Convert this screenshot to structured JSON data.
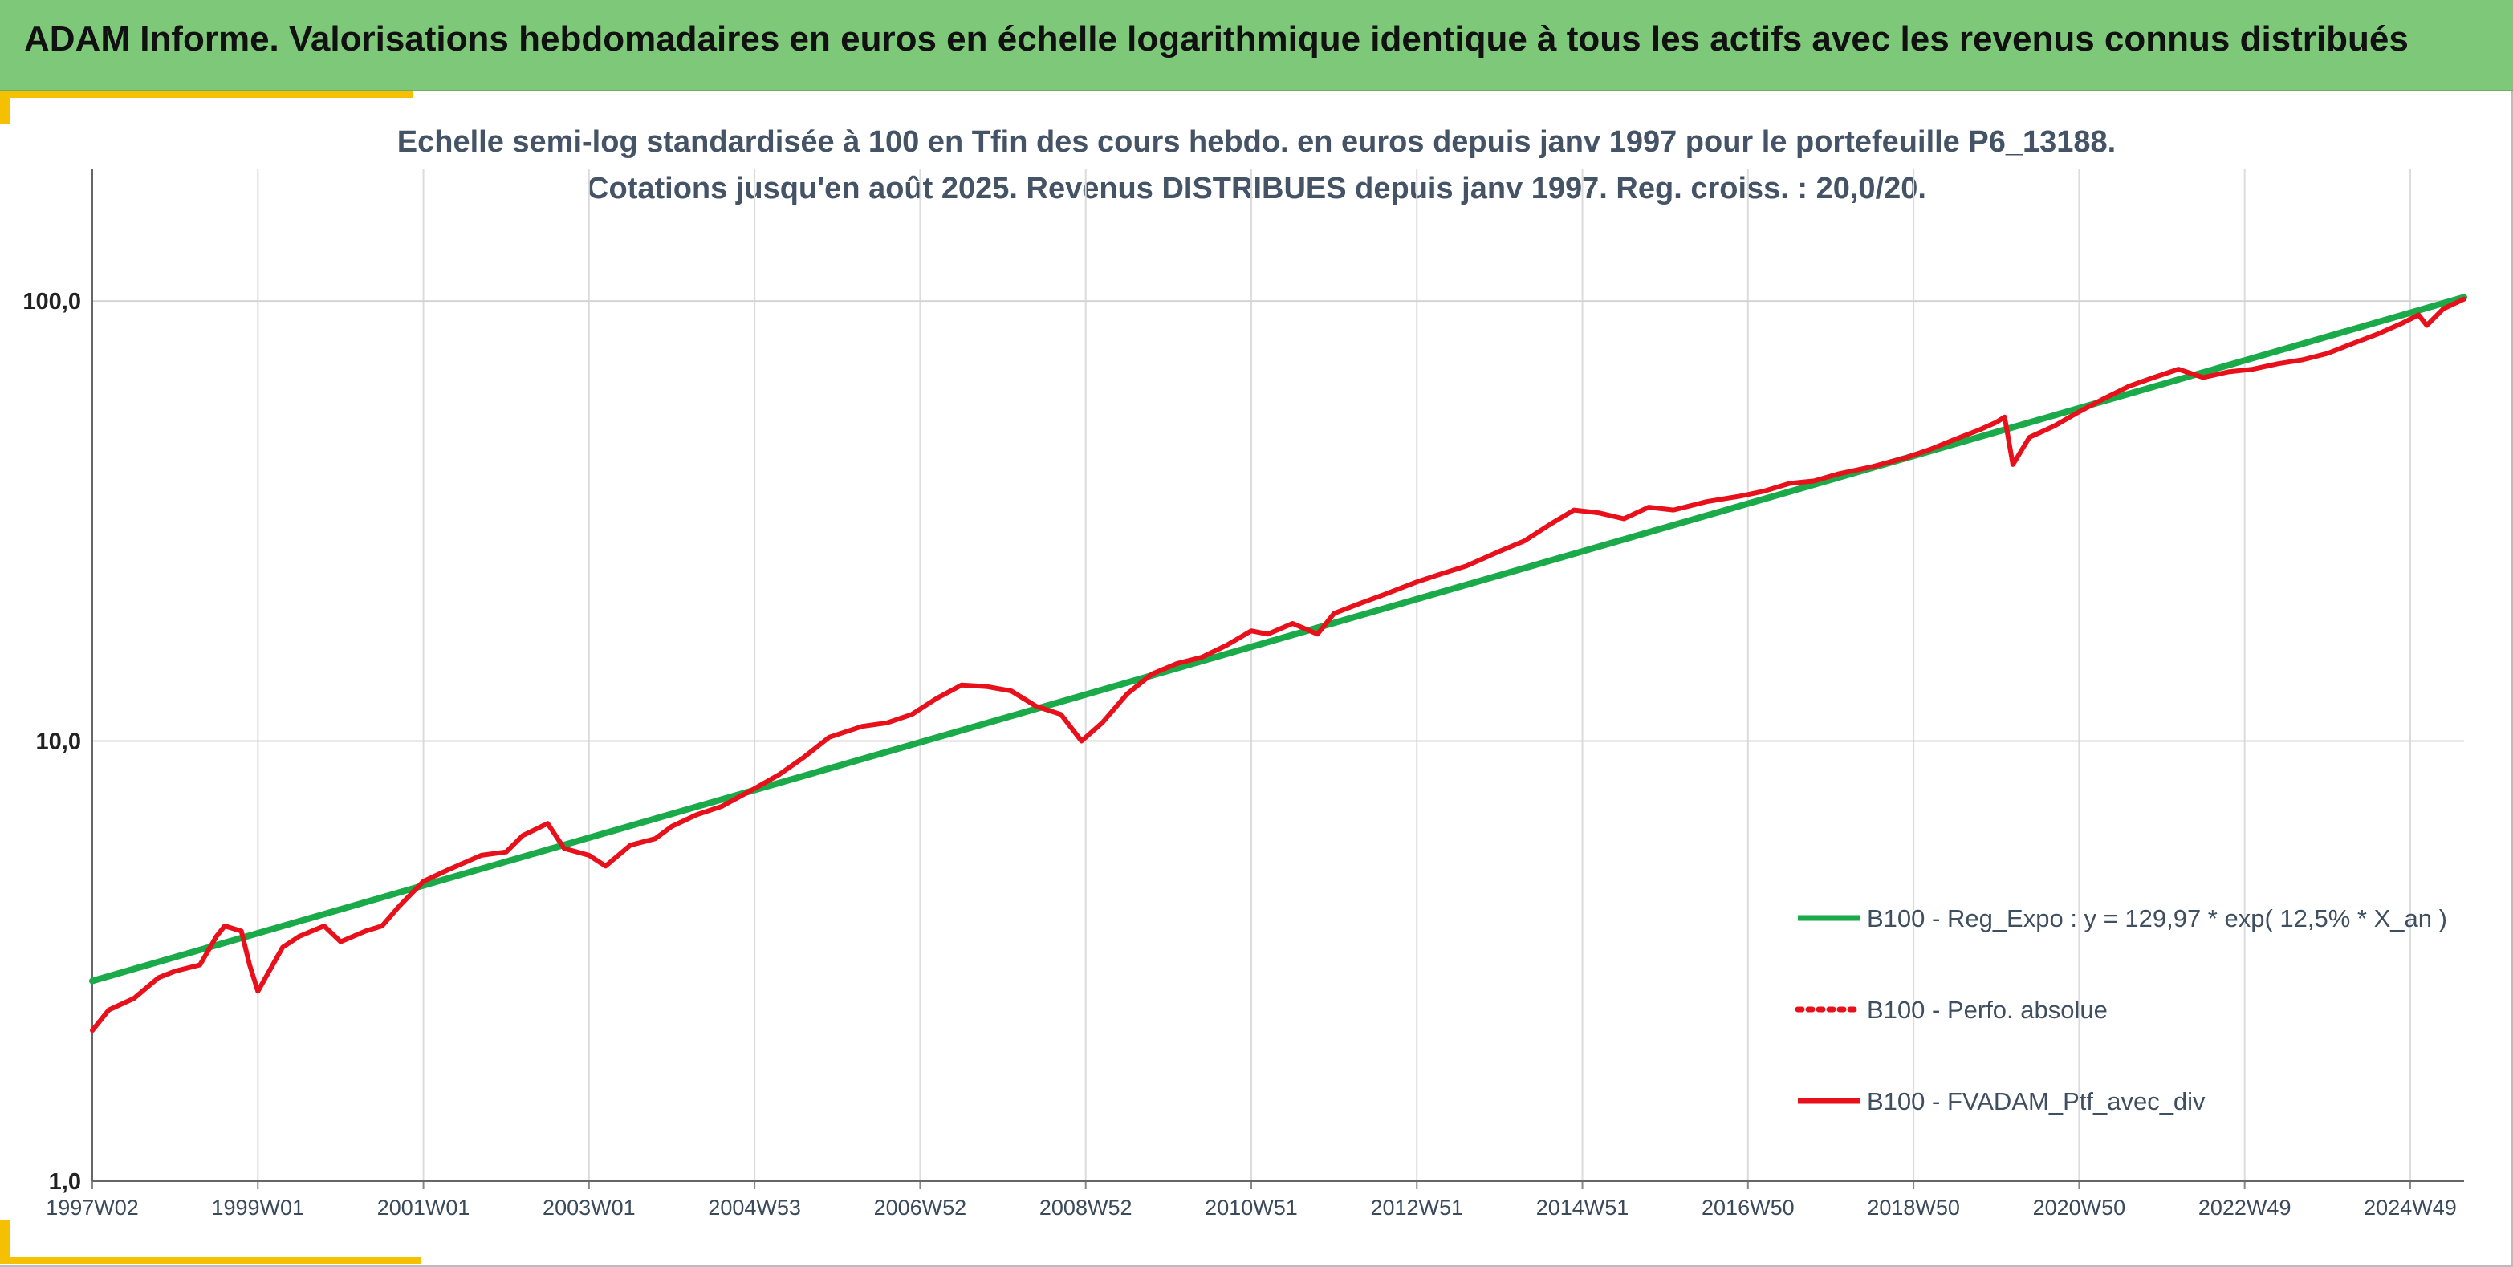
{
  "header": {
    "title": "ADAM Informe. Valorisations hebdomadaires en euros en échelle logarithmique identique à tous les actifs avec les revenus connus distribués"
  },
  "chart_data": {
    "type": "line",
    "title_lines": [
      "Echelle semi-log standardisée à 100 en Tfin des cours hebdo. en euros depuis janv 1997 pour le portefeuille P6_13188.",
      "Cotations jusqu'en août 2025. Revenus DISTRIBUES depuis janv 1997. Reg. croiss. : 20,0/20."
    ],
    "y_scale": "log",
    "ylim": [
      1,
      200
    ],
    "y_ticks": [
      {
        "value": 1,
        "label": "1,0"
      },
      {
        "value": 10,
        "label": "10,0"
      },
      {
        "value": 100,
        "label": "100,0"
      }
    ],
    "xlim": [
      1997.0,
      2025.65
    ],
    "x_ticks": [
      {
        "value": 1997.0,
        "label": "1997W02"
      },
      {
        "value": 1999.0,
        "label": "1999W01"
      },
      {
        "value": 2001.0,
        "label": "2001W01"
      },
      {
        "value": 2003.0,
        "label": "2003W01"
      },
      {
        "value": 2005.0,
        "label": "2004W53"
      },
      {
        "value": 2007.0,
        "label": "2006W52"
      },
      {
        "value": 2009.0,
        "label": "2008W52"
      },
      {
        "value": 2011.0,
        "label": "2010W51"
      },
      {
        "value": 2013.0,
        "label": "2012W51"
      },
      {
        "value": 2015.0,
        "label": "2014W51"
      },
      {
        "value": 2017.0,
        "label": "2016W50"
      },
      {
        "value": 2019.0,
        "label": "2018W50"
      },
      {
        "value": 2021.0,
        "label": "2020W50"
      },
      {
        "value": 2023.0,
        "label": "2022W49"
      },
      {
        "value": 2025.0,
        "label": "2024W49"
      }
    ],
    "grid": "vertical",
    "legend_position": "right",
    "series": [
      {
        "name": "B100 - Reg_Expo : y = 129,97 * exp( 12,5% *  X_an )",
        "color": "#1aaa4a",
        "style": "solid",
        "x": [
          1997.0,
          2025.65
        ],
        "y": [
          2.85,
          102.0
        ]
      },
      {
        "name": "B100 - Perfo. absolue",
        "color": "#e8101a",
        "style": "dotted",
        "x": [],
        "y": []
      },
      {
        "name": "B100 - FVADAM_Ptf_avec_div",
        "color": "#e8101a",
        "style": "solid",
        "x": [
          1997.0,
          1997.2,
          1997.5,
          1997.8,
          1998.0,
          1998.3,
          1998.5,
          1998.6,
          1998.8,
          1998.9,
          1999.0,
          1999.3,
          1999.5,
          1999.8,
          2000.0,
          2000.3,
          2000.5,
          2000.7,
          2001.0,
          2001.3,
          2001.7,
          2002.0,
          2002.2,
          2002.5,
          2002.7,
          2003.0,
          2003.2,
          2003.5,
          2003.8,
          2004.0,
          2004.3,
          2004.6,
          2005.0,
          2005.3,
          2005.6,
          2005.9,
          2006.3,
          2006.6,
          2006.9,
          2007.2,
          2007.5,
          2007.8,
          2008.1,
          2008.4,
          2008.7,
          2008.95,
          2009.2,
          2009.5,
          2009.8,
          2010.1,
          2010.4,
          2010.7,
          2011.0,
          2011.2,
          2011.5,
          2011.8,
          2012.0,
          2012.3,
          2012.6,
          2013.0,
          2013.3,
          2013.6,
          2014.0,
          2014.3,
          2014.6,
          2014.9,
          2015.2,
          2015.5,
          2015.8,
          2016.1,
          2016.5,
          2016.9,
          2017.2,
          2017.5,
          2017.8,
          2018.1,
          2018.5,
          2018.9,
          2019.2,
          2019.5,
          2019.8,
          2020.0,
          2020.1,
          2020.2,
          2020.4,
          2020.7,
          2021.0,
          2021.3,
          2021.6,
          2021.9,
          2022.2,
          2022.5,
          2022.8,
          2023.1,
          2023.4,
          2023.7,
          2024.0,
          2024.3,
          2024.6,
          2024.9,
          2025.1,
          2025.2,
          2025.4,
          2025.65
        ],
        "y": [
          2.2,
          2.45,
          2.6,
          2.9,
          3.0,
          3.1,
          3.6,
          3.8,
          3.7,
          3.1,
          2.7,
          3.4,
          3.6,
          3.8,
          3.5,
          3.7,
          3.8,
          4.2,
          4.8,
          5.1,
          5.5,
          5.6,
          6.1,
          6.5,
          5.7,
          5.5,
          5.2,
          5.8,
          6.0,
          6.4,
          6.8,
          7.1,
          7.8,
          8.4,
          9.2,
          10.2,
          10.8,
          11.0,
          11.5,
          12.5,
          13.4,
          13.3,
          13.0,
          12.0,
          11.5,
          10.0,
          11.0,
          12.8,
          14.2,
          15.0,
          15.5,
          16.5,
          17.8,
          17.5,
          18.5,
          17.5,
          19.5,
          20.5,
          21.5,
          23.0,
          24.0,
          25.0,
          27.0,
          28.5,
          31.0,
          33.5,
          33.0,
          32.0,
          34.0,
          33.5,
          35.0,
          36.0,
          37.0,
          38.5,
          39.0,
          40.5,
          42.0,
          44.0,
          46.0,
          48.5,
          51.0,
          53.0,
          54.5,
          42.5,
          49.0,
          52.0,
          56.0,
          60.0,
          64.0,
          67.0,
          70.0,
          67.0,
          69.0,
          70.0,
          72.0,
          73.5,
          76.0,
          80.0,
          84.0,
          89.0,
          93.0,
          88.0,
          96.0,
          101.0
        ]
      }
    ]
  }
}
